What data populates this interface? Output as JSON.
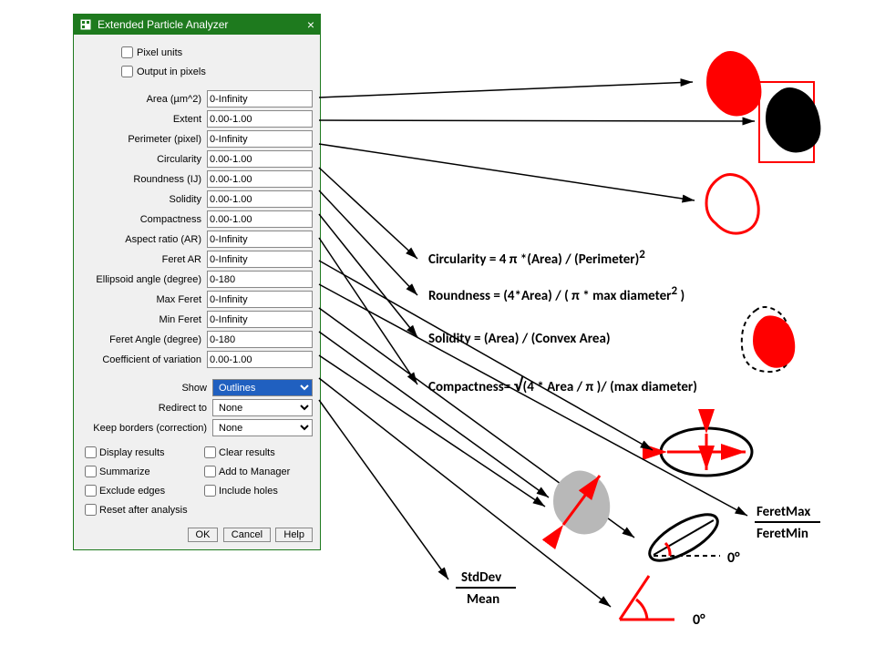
{
  "dialog": {
    "title": "Extended Particle Analyzer",
    "top_checks": {
      "pixel_units": "Pixel units",
      "output_in_pixels": "Output in pixels"
    },
    "fields": [
      {
        "label": "Area (µm^2)",
        "value": "0-Infinity"
      },
      {
        "label": "Extent",
        "value": "0.00-1.00"
      },
      {
        "label": "Perimeter (pixel)",
        "value": "0-Infinity"
      },
      {
        "label": "Circularity",
        "value": "0.00-1.00"
      },
      {
        "label": "Roundness (IJ)",
        "value": "0.00-1.00"
      },
      {
        "label": "Solidity",
        "value": "0.00-1.00"
      },
      {
        "label": "Compactness",
        "value": "0.00-1.00"
      },
      {
        "label": "Aspect ratio (AR)",
        "value": "0-Infinity"
      },
      {
        "label": "Feret AR",
        "value": "0-Infinity"
      },
      {
        "label": "Ellipsoid angle (degree)",
        "value": "0-180"
      },
      {
        "label": "Max Feret",
        "value": "0-Infinity"
      },
      {
        "label": "Min Feret",
        "value": "0-Infinity"
      },
      {
        "label": "Feret Angle (degree)",
        "value": "0-180"
      },
      {
        "label": "Coefficient of variation",
        "value": "0.00-1.00"
      }
    ],
    "selects": {
      "show": {
        "label": "Show",
        "value": "Outlines"
      },
      "redirect": {
        "label": "Redirect to",
        "value": "None"
      },
      "keep_borders": {
        "label": "Keep borders (correction)",
        "value": "None"
      }
    },
    "bottom_checks": {
      "display_results": "Display results",
      "clear_results": "Clear results",
      "summarize": "Summarize",
      "add_to_manager": "Add to Manager",
      "exclude_edges": "Exclude edges",
      "include_holes": "Include holes",
      "reset_after": "Reset after analysis"
    },
    "buttons": {
      "ok": "OK",
      "cancel": "Cancel",
      "help": "Help"
    }
  },
  "annotations": {
    "font_size_formula": 15,
    "circularity": "Circularity   =   4 π *(Area) / (Perimeter)",
    "circularity_exp": "2",
    "roundness": "Roundness =   (4*Area) / ( π  * max diameter",
    "roundness_exp": "2",
    "roundness_close": " )",
    "solidity": "Solidity   =   (Area) / (Convex Area)",
    "compactness_left": "Compactness=   ",
    "compactness_sqrt": "√",
    "compactness_under": "(4 * Area /  π  )",
    "compactness_right": "/ (max diameter)",
    "feretmax": "FeretMax",
    "feretmin": "FeretMin",
    "stddev": "StdDev",
    "mean": "Mean",
    "zero1": "0°",
    "zero2": "0°",
    "colors": {
      "arrow": "#000000",
      "red": "#ff0000",
      "black": "#000000",
      "grey": "#b0b0b0"
    }
  }
}
